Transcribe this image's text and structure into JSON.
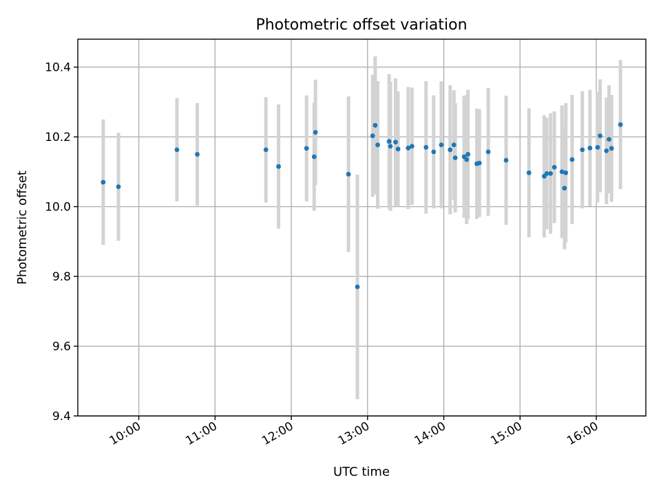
{
  "chart_data": {
    "type": "scatter",
    "title": "Photometric offset variation",
    "xlabel": "UTC time",
    "ylabel": "Photometric offset",
    "x_unit": "hours",
    "xlim": [
      9.2,
      16.65
    ],
    "ylim": [
      9.4,
      10.48
    ],
    "x_ticks": [
      10,
      11,
      12,
      13,
      14,
      15,
      16
    ],
    "x_tick_labels": [
      "10:00",
      "11:00",
      "12:00",
      "13:00",
      "14:00",
      "15:00",
      "16:00"
    ],
    "y_ticks": [
      9.4,
      9.6,
      9.8,
      10.0,
      10.2,
      10.4
    ],
    "y_tick_labels": [
      "9.4",
      "9.6",
      "9.8",
      "10.0",
      "10.2",
      "10.4"
    ],
    "grid": true,
    "colors": {
      "point": "#1f77b4",
      "errorbar": "#d3d3d3",
      "grid": "#b0b0b0"
    },
    "series": [
      {
        "x": [
          9.533,
          9.733,
          10.5,
          10.767,
          11.667,
          11.833,
          12.2,
          12.3,
          12.317,
          12.75,
          12.867,
          13.067,
          13.1,
          13.133,
          13.283,
          13.3,
          13.367,
          13.4,
          13.533,
          13.583,
          13.767,
          13.867,
          13.967,
          14.083,
          14.133,
          14.15,
          14.267,
          14.3,
          14.317,
          14.433,
          14.467,
          14.583,
          14.817,
          15.117,
          15.317,
          15.35,
          15.4,
          15.45,
          15.55,
          15.583,
          15.6,
          15.683,
          15.817,
          15.917,
          16.017,
          16.05,
          16.133,
          16.167,
          16.2,
          16.317
        ],
        "y": [
          10.07,
          10.057,
          10.163,
          10.15,
          10.163,
          10.115,
          10.167,
          10.143,
          10.213,
          10.093,
          9.77,
          10.203,
          10.233,
          10.177,
          10.187,
          10.173,
          10.185,
          10.165,
          10.168,
          10.173,
          10.17,
          10.157,
          10.177,
          10.163,
          10.177,
          10.14,
          10.143,
          10.135,
          10.15,
          10.123,
          10.125,
          10.157,
          10.133,
          10.097,
          10.087,
          10.095,
          10.095,
          10.113,
          10.1,
          10.053,
          10.097,
          10.135,
          10.163,
          10.168,
          10.17,
          10.203,
          10.16,
          10.193,
          10.167,
          10.235
        ],
        "err": [
          0.18,
          0.155,
          0.148,
          0.147,
          0.151,
          0.178,
          0.152,
          0.155,
          0.151,
          0.223,
          0.322,
          0.175,
          0.198,
          0.183,
          0.193,
          0.185,
          0.183,
          0.165,
          0.175,
          0.168,
          0.19,
          0.162,
          0.182,
          0.185,
          0.157,
          0.157,
          0.175,
          0.185,
          0.185,
          0.158,
          0.155,
          0.183,
          0.185,
          0.185,
          0.175,
          0.16,
          0.173,
          0.16,
          0.19,
          0.175,
          0.2,
          0.185,
          0.168,
          0.167,
          0.158,
          0.162,
          0.153,
          0.155,
          0.153,
          0.185
        ]
      }
    ]
  }
}
